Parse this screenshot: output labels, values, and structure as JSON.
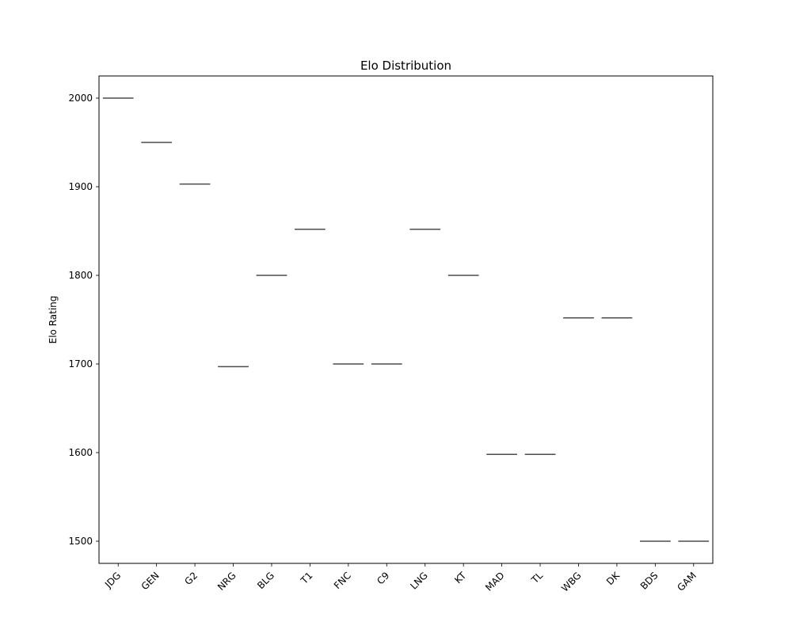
{
  "chart_data": {
    "type": "box",
    "title": "Elo Distribution",
    "xlabel": "",
    "ylabel": "Elo Rating",
    "categories": [
      "JDG",
      "GEN",
      "G2",
      "NRG",
      "BLG",
      "T1",
      "FNC",
      "C9",
      "LNG",
      "KT",
      "MAD",
      "TL",
      "WBG",
      "DK",
      "BDS",
      "GAM"
    ],
    "values": [
      2000,
      1950,
      1903,
      1697,
      1800,
      1852,
      1700,
      1700,
      1852,
      1800,
      1598,
      1598,
      1752,
      1752,
      1500,
      1500
    ],
    "ylim": [
      1475,
      2025
    ],
    "yticks": [
      1500,
      1600,
      1700,
      1800,
      1900,
      2000
    ],
    "grid": false,
    "x_tick_rotation": 45,
    "mark_color": "#4d4d4d"
  }
}
